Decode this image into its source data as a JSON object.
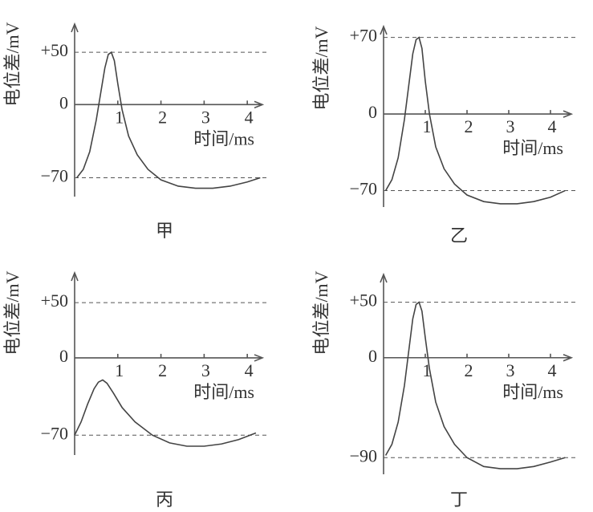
{
  "chart_data": [
    {
      "type": "line",
      "title": "甲",
      "ylabel": "电位差/mV",
      "xlabel": "时间/ms",
      "color": "#444",
      "grid": true,
      "xlim": [
        0,
        4.35
      ],
      "xticks": [
        1,
        2,
        3,
        4
      ],
      "ylim": [
        -88,
        77
      ],
      "yticks": [
        {
          "value": 50,
          "label": "+50"
        },
        0,
        {
          "value": -70,
          "label": "−70"
        }
      ],
      "x": [
        0.05,
        0.2,
        0.35,
        0.5,
        0.6,
        0.7,
        0.78,
        0.85,
        0.92,
        1.0,
        1.1,
        1.25,
        1.45,
        1.7,
        2.0,
        2.4,
        2.8,
        3.2,
        3.6,
        4.0,
        4.3
      ],
      "values": [
        -70,
        -62,
        -45,
        -15,
        10,
        35,
        48,
        50,
        42,
        20,
        -5,
        -30,
        -48,
        -62,
        -72,
        -78,
        -80,
        -80,
        -78,
        -74,
        -70
      ]
    },
    {
      "type": "line",
      "title": "乙",
      "ylabel": "电位差/mV",
      "xlabel": "时间/ms",
      "color": "#444",
      "grid": true,
      "xlim": [
        0,
        4.5
      ],
      "xticks": [
        1,
        2,
        3,
        4
      ],
      "ylim": [
        -85,
        80
      ],
      "yticks": [
        {
          "value": 70,
          "label": "+70"
        },
        0,
        {
          "value": -70,
          "label": "−70"
        }
      ],
      "x": [
        0.05,
        0.2,
        0.35,
        0.5,
        0.6,
        0.7,
        0.78,
        0.85,
        0.92,
        1.0,
        1.1,
        1.25,
        1.45,
        1.7,
        2.0,
        2.4,
        2.8,
        3.2,
        3.6,
        4.0,
        4.35
      ],
      "values": [
        -70,
        -60,
        -40,
        -5,
        25,
        55,
        68,
        70,
        60,
        30,
        0,
        -30,
        -50,
        -64,
        -74,
        -80,
        -82,
        -82,
        -80,
        -76,
        -70
      ]
    },
    {
      "type": "line",
      "title": "丙",
      "ylabel": "电位差/mV",
      "xlabel": "时间/ms",
      "color": "#444",
      "grid": true,
      "xlim": [
        0,
        4.35
      ],
      "xticks": [
        1,
        2,
        3,
        4
      ],
      "ylim": [
        -88,
        77
      ],
      "yticks": [
        {
          "value": 50,
          "label": "+50"
        },
        0,
        {
          "value": -70,
          "label": "−70"
        }
      ],
      "x": [
        0,
        0.15,
        0.3,
        0.45,
        0.55,
        0.65,
        0.75,
        0.9,
        1.1,
        1.4,
        1.8,
        2.2,
        2.6,
        3.0,
        3.4,
        3.8,
        4.2
      ],
      "values": [
        -70,
        -58,
        -42,
        -28,
        -22,
        -20,
        -23,
        -32,
        -45,
        -58,
        -70,
        -77,
        -80,
        -80,
        -78,
        -74,
        -68
      ]
    },
    {
      "type": "line",
      "title": "丁",
      "ylabel": "电位差/mV",
      "xlabel": "时间/ms",
      "color": "#444",
      "grid": true,
      "xlim": [
        0,
        4.5
      ],
      "xticks": [
        1,
        2,
        3,
        4
      ],
      "ylim": [
        -105,
        75
      ],
      "yticks": [
        {
          "value": 50,
          "label": "+50"
        },
        0,
        {
          "value": -90,
          "label": "−90"
        }
      ],
      "x": [
        0.05,
        0.2,
        0.35,
        0.5,
        0.6,
        0.7,
        0.78,
        0.85,
        0.92,
        1.0,
        1.1,
        1.25,
        1.45,
        1.7,
        2.0,
        2.4,
        2.8,
        3.2,
        3.6,
        4.0,
        4.35
      ],
      "values": [
        -88,
        -78,
        -58,
        -25,
        5,
        35,
        48,
        50,
        42,
        18,
        -10,
        -40,
        -62,
        -78,
        -90,
        -98,
        -100,
        -100,
        -98,
        -94,
        -90
      ]
    }
  ]
}
